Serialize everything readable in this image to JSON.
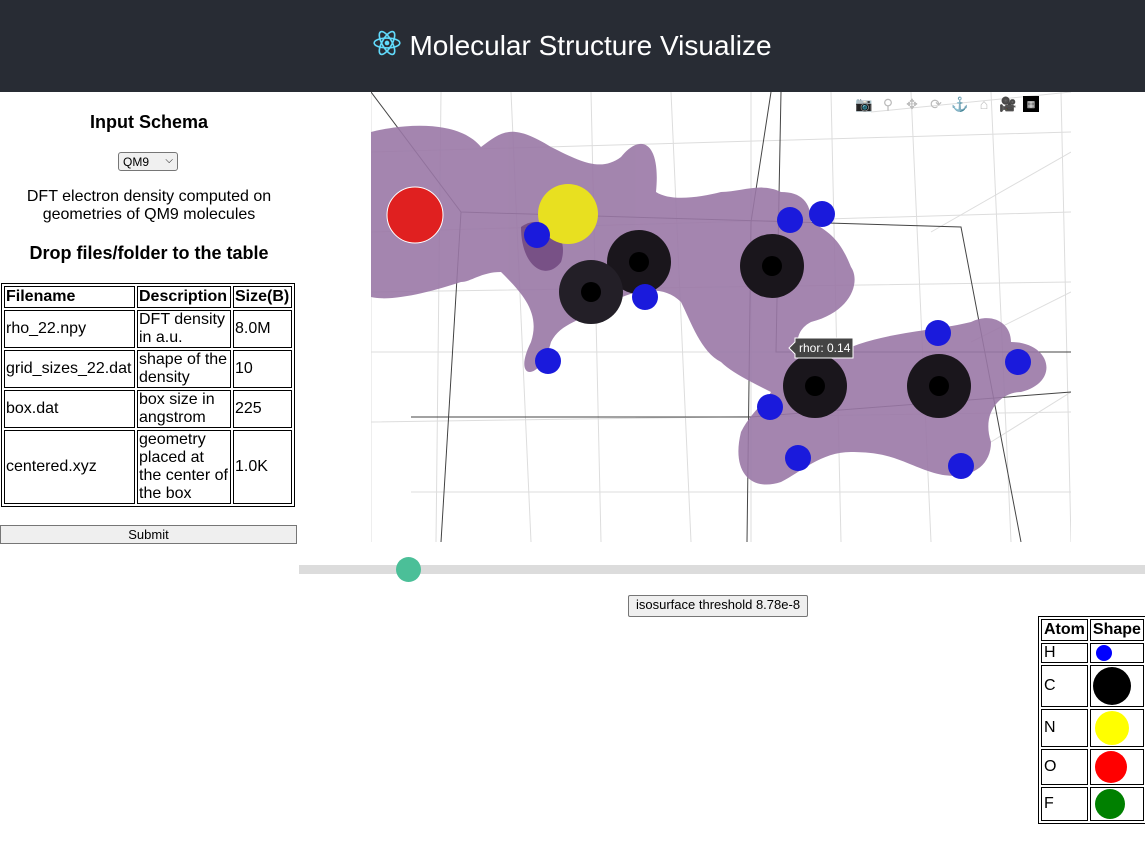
{
  "header": {
    "title": "Molecular Structure Visualize",
    "logo_icon": "react-atom-icon"
  },
  "sidebar": {
    "schema_title": "Input Schema",
    "schema_select_value": "QM9",
    "schema_description": "DFT electron density computed on geometries of QM9 molecules",
    "drop_title": "Drop files/folder to the table",
    "table_headers": [
      "Filename",
      "Description",
      "Size(B)"
    ],
    "files": [
      {
        "filename": "rho_22.npy",
        "description": "DFT density in a.u.",
        "size": "8.0M"
      },
      {
        "filename": "grid_sizes_22.dat",
        "description": "shape of the density",
        "size": "10"
      },
      {
        "filename": "box.dat",
        "description": "box size in angstrom",
        "size": "225"
      },
      {
        "filename": "centered.xyz",
        "description": "geometry placed at the center of the box",
        "size": "1.0K"
      }
    ],
    "submit_label": "Submit"
  },
  "plot": {
    "tooltip": "rhor: 0.14",
    "modebar_icons": [
      "camera-icon",
      "zoom-icon",
      "pan-icon",
      "orbit-rotation-icon",
      "turntable-rotation-icon",
      "reset-camera-icon",
      "save-camera-icon",
      "plotly-logo-icon"
    ]
  },
  "controls": {
    "slider_level": 0.13,
    "threshold_label": "isosurface threshold 8.78e-8"
  },
  "legend": {
    "headers": [
      "Atom",
      "Shape"
    ],
    "atoms": [
      {
        "atom": "H",
        "color": "#0000ff"
      },
      {
        "atom": "C",
        "color": "#000000"
      },
      {
        "atom": "N",
        "color": "#ffff00"
      },
      {
        "atom": "O",
        "color": "#ff0000"
      },
      {
        "atom": "F",
        "color": "#008000"
      }
    ]
  }
}
